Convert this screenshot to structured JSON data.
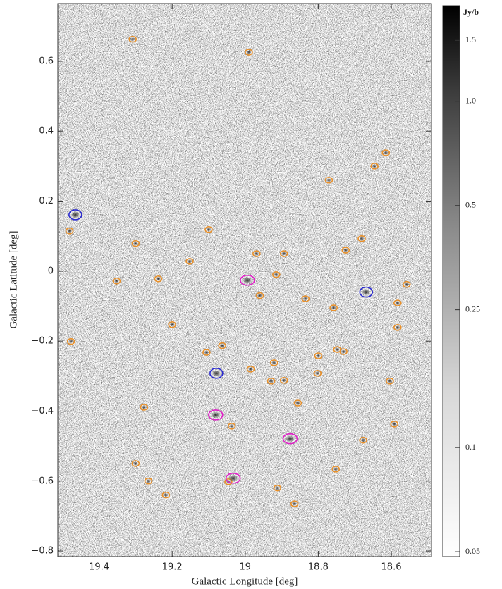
{
  "chart_data": {
    "type": "image",
    "xlabel": "Galactic Longitude [deg]",
    "ylabel": "Galactic Latitude [deg]",
    "xlim": [
      19.513,
      18.49
    ],
    "ylim": [
      -0.816,
      0.765
    ],
    "xticks": [
      19.4,
      19.2,
      19,
      18.8,
      18.6
    ],
    "yticks": [
      0.6,
      0.4,
      0.2,
      0,
      {
        "value": -0.2,
        "label": "−0.2"
      },
      {
        "value": -0.4,
        "label": "−0.4"
      },
      {
        "value": -0.6,
        "label": "−0.6"
      },
      {
        "value": -0.8,
        "label": "−0.8"
      }
    ],
    "series": [
      {
        "color": "#e8902a",
        "x": [
          19.308,
          18.99,
          19.481,
          19.3,
          19.352,
          19.152,
          19.1,
          18.969,
          18.894,
          18.915,
          18.725,
          18.681,
          18.771,
          18.615,
          18.646,
          18.758,
          18.835,
          18.96,
          18.583,
          18.583,
          18.558,
          19.477,
          19.2,
          19.063,
          19.106,
          18.985,
          18.921,
          18.8,
          18.748,
          18.731,
          18.929,
          18.894,
          18.802,
          18.604,
          19.277,
          19.037,
          18.856,
          18.592,
          18.677,
          19.3,
          19.265,
          19.217,
          18.912,
          18.865,
          18.752,
          19.046,
          19.238
        ],
        "y": [
          0.663,
          0.626,
          0.115,
          0.079,
          -0.028,
          0.028,
          0.119,
          0.05,
          0.05,
          -0.01,
          0.06,
          0.093,
          0.26,
          0.338,
          0.3,
          -0.105,
          -0.079,
          -0.07,
          -0.091,
          -0.161,
          -0.038,
          -0.201,
          -0.153,
          -0.213,
          -0.232,
          -0.28,
          -0.262,
          -0.242,
          -0.224,
          -0.23,
          -0.314,
          -0.312,
          -0.292,
          -0.314,
          -0.389,
          -0.443,
          -0.377,
          -0.437,
          -0.483,
          -0.55,
          -0.6,
          -0.64,
          -0.62,
          -0.665,
          -0.566,
          -0.602,
          -0.022
        ]
      },
      {
        "color": "#e020c8",
        "x": [
          18.994,
          19.081,
          18.877,
          19.033
        ],
        "y": [
          -0.026,
          -0.411,
          -0.479,
          -0.592
        ]
      },
      {
        "color": "#2a2ad0",
        "x": [
          19.465,
          19.079,
          18.669
        ],
        "y": [
          0.161,
          -0.292,
          -0.06
        ]
      }
    ],
    "colorbar": {
      "label": "Jy/b",
      "log": true,
      "lim": [
        0.0484,
        1.89
      ],
      "ticks": [
        1.5,
        {
          "value": 1,
          "label": "1.0"
        },
        0.5,
        0.25,
        0.1,
        0.05
      ]
    }
  }
}
